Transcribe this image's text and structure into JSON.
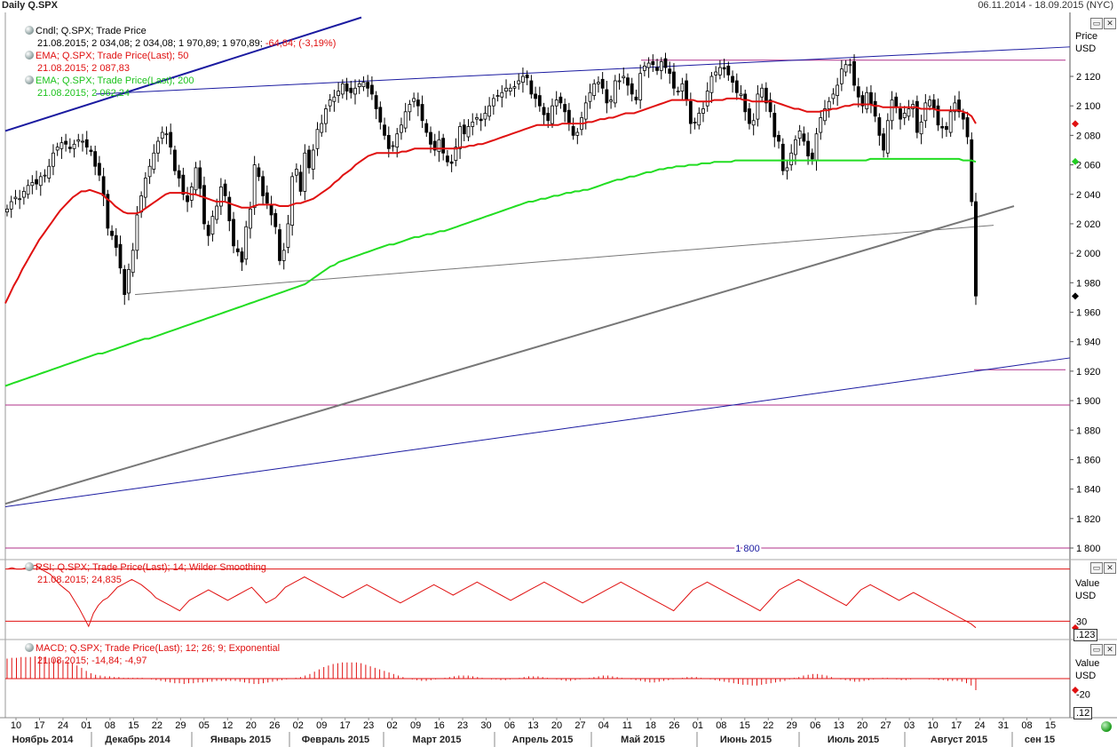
{
  "header": {
    "title": "Daily Q.SPX",
    "range": "06.11.2014 - 18.09.2015 (NYC)"
  },
  "legends": {
    "candles": {
      "line1": "Cndl; Q.SPX; Trade Price",
      "line2_main": "21.08.2015; 2 034,08; 2 034,08; 1 970,89; 1 970,89; ",
      "line2_chg": "-64,84; (-3,19%)"
    },
    "ema50": {
      "line1": "EMA; Q.SPX; Trade Price(Last);  50",
      "line2": "21.08.2015; 2 087,83"
    },
    "ema200": {
      "line1": "EMA; Q.SPX; Trade Price(Last);  200",
      "line2": "21.08.2015; 2 062,24"
    },
    "rsi": {
      "line1": "RSI; Q.SPX; Trade Price(Last);  14; Wilder Smoothing",
      "line2": "21.08.2015; 24,835"
    },
    "macd": {
      "line1": "MACD; Q.SPX; Trade Price(Last);  12; 26; 9; Exponential",
      "line2": "21.08.2015; -14,84; -4,97"
    }
  },
  "axis": {
    "price_title": "Price",
    "price_unit": "USD",
    "value_title": "Value",
    "value_unit": "USD",
    "rsi_value_box": ".123",
    "macd_value_box": ".12"
  },
  "colors": {
    "ema50": "#e01010",
    "ema200": "#22dd22",
    "trend_blue": "#1a1aa0",
    "trend_gray": "#777777",
    "level_magenta": "#b0308a",
    "candle": "#000000",
    "macd": "#e01010",
    "rsi": "#e01010"
  },
  "chart_data": [
    {
      "type": "candlestick",
      "title": "Daily Q.SPX",
      "ylabel": "Price USD",
      "ylim": [
        1790,
        2150
      ],
      "yticks": [
        1800,
        1820,
        1840,
        1860,
        1880,
        1900,
        1920,
        1940,
        1960,
        1980,
        2000,
        2020,
        2040,
        2060,
        2080,
        2100,
        2120
      ],
      "ytick_labels": [
        "1 800",
        "1 820",
        "1 840",
        "1 860",
        "1 880",
        "1 900",
        "1 920",
        "1 940",
        "1 960",
        "1 980",
        "2 000",
        "2 020",
        "2 040",
        "2 060",
        "2 080",
        "2 100",
        "2 120"
      ],
      "grid": false,
      "last_price_marker": 1970.89,
      "ema50_marker": 2087.83,
      "ema200_marker": 2062.24,
      "last_bar": {
        "date": "21.08.2015",
        "open": 2034.08,
        "high": 2034.08,
        "low": 1970.89,
        "close": 1970.89,
        "change": -64.84,
        "change_pct": -3.19
      },
      "close_series": [
        2030,
        2035,
        2038,
        2037,
        2042,
        2046,
        2048,
        2047,
        2052,
        2053,
        2059,
        2068,
        2072,
        2075,
        2074,
        2071,
        2074,
        2077,
        2076,
        2072,
        2069,
        2059,
        2053,
        2039,
        2017,
        2012,
        2004,
        1990,
        1972,
        1989,
        2002,
        2026,
        2039,
        2051,
        2059,
        2068,
        2076,
        2082,
        2081,
        2072,
        2056,
        2051,
        2040,
        2035,
        2045,
        2058,
        2044,
        2020,
        2012,
        2025,
        2032,
        2045,
        2039,
        2022,
        2005,
        2001,
        1994,
        2018,
        2030,
        2060,
        2052,
        2039,
        2034,
        2026,
        2018,
        1995,
        2002,
        2020,
        2052,
        2057,
        2042,
        2068,
        2058,
        2070,
        2084,
        2088,
        2098,
        2104,
        2106,
        2110,
        2115,
        2110,
        2109,
        2112,
        2115,
        2116,
        2112,
        2108,
        2098,
        2089,
        2080,
        2071,
        2073,
        2081,
        2087,
        2096,
        2101,
        2105,
        2100,
        2090,
        2082,
        2074,
        2070,
        2077,
        2068,
        2062,
        2061,
        2072,
        2086,
        2081,
        2086,
        2089,
        2092,
        2090,
        2095,
        2100,
        2105,
        2107,
        2109,
        2112,
        2112,
        2113,
        2117,
        2120,
        2119,
        2108,
        2105,
        2100,
        2094,
        2090,
        2100,
        2104,
        2102,
        2096,
        2088,
        2080,
        2082,
        2092,
        2102,
        2109,
        2115,
        2116,
        2112,
        2102,
        2104,
        2117,
        2117,
        2120,
        2114,
        2108,
        2104,
        2122,
        2127,
        2129,
        2128,
        2124,
        2130,
        2126,
        2122,
        2112,
        2110,
        2115,
        2104,
        2088,
        2089,
        2095,
        2098,
        2110,
        2120,
        2123,
        2126,
        2125,
        2121,
        2116,
        2109,
        2108,
        2096,
        2088,
        2090,
        2108,
        2112,
        2102,
        2096,
        2079,
        2076,
        2056,
        2058,
        2068,
        2077,
        2083,
        2076,
        2066,
        2064,
        2081,
        2092,
        2098,
        2103,
        2108,
        2114,
        2125,
        2128,
        2128,
        2114,
        2106,
        2100,
        2109,
        2101,
        2093,
        2080,
        2070,
        2090,
        2104,
        2099,
        2091,
        2095,
        2098,
        2101,
        2082,
        2089,
        2102,
        2104,
        2098,
        2087,
        2085,
        2084,
        2096,
        2102,
        2096,
        2091,
        2079,
        2035,
        1971
      ],
      "ema50_series": [
        1966,
        1972,
        1978,
        1983,
        1989,
        1994,
        1999,
        2004,
        2009,
        2013,
        2017,
        2021,
        2025,
        2029,
        2032,
        2035,
        2038,
        2040,
        2042,
        2042,
        2043,
        2042,
        2041,
        2040,
        2037,
        2035,
        2032,
        2030,
        2028,
        2027,
        2027,
        2027,
        2028,
        2030,
        2032,
        2034,
        2036,
        2038,
        2040,
        2041,
        2041,
        2041,
        2041,
        2041,
        2040,
        2040,
        2039,
        2038,
        2037,
        2036,
        2035,
        2035,
        2035,
        2034,
        2033,
        2032,
        2031,
        2031,
        2031,
        2032,
        2033,
        2033,
        2033,
        2033,
        2033,
        2032,
        2032,
        2032,
        2033,
        2034,
        2034,
        2035,
        2036,
        2037,
        2039,
        2041,
        2043,
        2045,
        2048,
        2050,
        2053,
        2055,
        2057,
        2060,
        2062,
        2064,
        2066,
        2067,
        2068,
        2068,
        2068,
        2068,
        2068,
        2068,
        2069,
        2069,
        2070,
        2071,
        2071,
        2071,
        2071,
        2071,
        2071,
        2071,
        2071,
        2071,
        2071,
        2071,
        2072,
        2072,
        2073,
        2073,
        2074,
        2074,
        2075,
        2076,
        2077,
        2078,
        2079,
        2080,
        2081,
        2082,
        2083,
        2084,
        2085,
        2086,
        2087,
        2087,
        2087,
        2087,
        2087,
        2087,
        2088,
        2088,
        2088,
        2088,
        2088,
        2088,
        2089,
        2089,
        2090,
        2091,
        2091,
        2092,
        2092,
        2093,
        2094,
        2095,
        2095,
        2095,
        2096,
        2097,
        2098,
        2099,
        2100,
        2101,
        2102,
        2103,
        2104,
        2104,
        2104,
        2104,
        2104,
        2104,
        2103,
        2103,
        2103,
        2103,
        2104,
        2104,
        2104,
        2105,
        2105,
        2105,
        2105,
        2104,
        2104,
        2103,
        2103,
        2103,
        2103,
        2103,
        2103,
        2102,
        2101,
        2100,
        2099,
        2098,
        2098,
        2097,
        2096,
        2096,
        2096,
        2096,
        2097,
        2097,
        2098,
        2098,
        2099,
        2100,
        2100,
        2101,
        2101,
        2101,
        2101,
        2101,
        2100,
        2100,
        2099,
        2099,
        2099,
        2099,
        2099,
        2099,
        2099,
        2099,
        2099,
        2098,
        2098,
        2098,
        2098,
        2097,
        2097,
        2097,
        2097,
        2097,
        2097,
        2096,
        2095,
        2093,
        2088
      ],
      "ema200_series": [
        1910,
        1911,
        1912,
        1913,
        1914,
        1915,
        1916,
        1917,
        1918,
        1919,
        1920,
        1921,
        1922,
        1923,
        1924,
        1925,
        1926,
        1927,
        1928,
        1929,
        1930,
        1931,
        1932,
        1932,
        1933,
        1934,
        1935,
        1936,
        1937,
        1938,
        1939,
        1940,
        1941,
        1942,
        1942,
        1943,
        1944,
        1945,
        1946,
        1947,
        1948,
        1949,
        1950,
        1951,
        1952,
        1953,
        1954,
        1955,
        1956,
        1957,
        1958,
        1959,
        1960,
        1961,
        1962,
        1963,
        1964,
        1965,
        1966,
        1967,
        1968,
        1969,
        1970,
        1971,
        1972,
        1973,
        1974,
        1975,
        1976,
        1977,
        1978,
        1979,
        1981,
        1983,
        1985,
        1987,
        1989,
        1991,
        1992,
        1994,
        1995,
        1996,
        1997,
        1998,
        1999,
        2000,
        2001,
        2002,
        2003,
        2004,
        2005,
        2006,
        2006,
        2007,
        2008,
        2009,
        2010,
        2011,
        2011,
        2012,
        2013,
        2013,
        2014,
        2015,
        2015,
        2016,
        2017,
        2018,
        2019,
        2020,
        2021,
        2022,
        2023,
        2024,
        2025,
        2026,
        2027,
        2028,
        2029,
        2030,
        2031,
        2032,
        2033,
        2034,
        2035,
        2035,
        2036,
        2037,
        2037,
        2038,
        2039,
        2039,
        2040,
        2041,
        2041,
        2042,
        2042,
        2043,
        2043,
        2044,
        2045,
        2046,
        2047,
        2048,
        2049,
        2050,
        2050,
        2051,
        2052,
        2052,
        2053,
        2054,
        2055,
        2055,
        2056,
        2057,
        2057,
        2058,
        2058,
        2059,
        2059,
        2059,
        2060,
        2060,
        2060,
        2061,
        2061,
        2061,
        2062,
        2062,
        2062,
        2062,
        2062,
        2063,
        2063,
        2063,
        2063,
        2063,
        2063,
        2063,
        2063,
        2063,
        2063,
        2063,
        2063,
        2063,
        2063,
        2063,
        2063,
        2063,
        2063,
        2063,
        2063,
        2063,
        2063,
        2063,
        2063,
        2063,
        2063,
        2063,
        2063,
        2063,
        2063,
        2063,
        2063,
        2064,
        2064,
        2064,
        2064,
        2064,
        2064,
        2064,
        2064,
        2064,
        2064,
        2064,
        2064,
        2064,
        2064,
        2064,
        2064,
        2064,
        2064,
        2064,
        2064,
        2064,
        2064,
        2063,
        2063,
        2063,
        2062
      ]
    },
    {
      "type": "line",
      "title": "RSI; Q.SPX; Trade Price(Last); 14; Wilder Smoothing",
      "ylim": [
        20,
        80
      ],
      "reference_lines": [
        70,
        30
      ],
      "ytick_labels": [
        "30"
      ],
      "last_value": 24.835,
      "rsi_series": [
        70,
        71,
        70,
        70,
        71,
        72,
        73,
        70,
        68,
        66,
        62,
        58,
        55,
        52,
        46,
        40,
        33,
        26,
        36,
        42,
        46,
        48,
        52,
        56,
        58,
        60,
        62,
        60,
        58,
        55,
        52,
        48,
        46,
        44,
        42,
        40,
        38,
        42,
        46,
        48,
        50,
        52,
        54,
        52,
        50,
        48,
        46,
        48,
        50,
        52,
        54,
        56,
        52,
        48,
        44,
        46,
        48,
        52,
        56,
        58,
        60,
        62,
        64,
        62,
        60,
        58,
        56,
        54,
        52,
        50,
        48,
        50,
        52,
        54,
        56,
        58,
        56,
        54,
        52,
        50,
        48,
        46,
        44,
        46,
        48,
        50,
        52,
        54,
        56,
        58,
        56,
        54,
        52,
        50,
        52,
        54,
        56,
        58,
        60,
        58,
        56,
        54,
        52,
        50,
        48,
        46,
        48,
        50,
        52,
        54,
        56,
        58,
        60,
        58,
        56,
        54,
        52,
        50,
        48,
        46,
        44,
        46,
        48,
        50,
        52,
        54,
        56,
        58,
        60,
        58,
        56,
        54,
        52,
        50,
        48,
        46,
        44,
        42,
        40,
        38,
        42,
        46,
        50,
        54,
        56,
        58,
        60,
        58,
        56,
        54,
        52,
        50,
        48,
        46,
        44,
        42,
        40,
        38,
        42,
        46,
        50,
        54,
        56,
        58,
        60,
        62,
        60,
        58,
        56,
        54,
        52,
        50,
        48,
        46,
        44,
        42,
        46,
        50,
        54,
        56,
        58,
        56,
        54,
        52,
        50,
        48,
        46,
        48,
        50,
        52,
        50,
        48,
        46,
        44,
        42,
        40,
        38,
        36,
        34,
        32,
        30,
        28,
        25
      ]
    },
    {
      "type": "bar",
      "title": "MACD; Q.SPX; Trade Price(Last); 12; 26; 9; Exponential",
      "ylim": [
        -25,
        35
      ],
      "reference_lines": [
        0
      ],
      "ytick_labels": [
        "-20"
      ],
      "last_values": {
        "macd": -14.84,
        "signal": -4.97
      },
      "macd_hist": [
        26,
        27,
        27,
        28,
        28,
        28,
        29,
        29,
        28,
        27,
        26,
        25,
        24,
        22,
        20,
        17,
        14,
        10,
        7,
        5,
        4,
        3,
        3,
        2,
        2,
        1,
        1,
        1,
        1,
        1,
        0,
        -1,
        -2,
        -3,
        -4,
        -5,
        -6,
        -6,
        -7,
        -6,
        -6,
        -5,
        -5,
        -4,
        -4,
        -3,
        -3,
        -3,
        -3,
        -3,
        -4,
        -5,
        -6,
        -7,
        -7,
        -6,
        -5,
        -4,
        -3,
        -2,
        -1,
        0,
        1,
        2,
        4,
        6,
        9,
        12,
        15,
        17,
        19,
        20,
        21,
        21,
        21,
        21,
        20,
        18,
        16,
        14,
        12,
        10,
        8,
        6,
        4,
        2,
        0,
        -1,
        -2,
        -3,
        -3,
        -2,
        -1,
        0,
        1,
        2,
        3,
        4,
        4,
        4,
        3,
        2,
        1,
        0,
        -1,
        -1,
        -2,
        -2,
        -1,
        0,
        1,
        2,
        3,
        3,
        3,
        2,
        1,
        0,
        -1,
        -2,
        -3,
        -3,
        -2,
        -1,
        0,
        1,
        2,
        3,
        4,
        4,
        3,
        2,
        1,
        0,
        -1,
        -2,
        -3,
        -4,
        -5,
        -5,
        -4,
        -3,
        -2,
        -1,
        0,
        1,
        2,
        2,
        2,
        1,
        0,
        -1,
        -2,
        -3,
        -4,
        -5,
        -6,
        -7,
        -8,
        -8,
        -9,
        -9,
        -8,
        -7,
        -6,
        -5,
        -4,
        -3,
        -1,
        1,
        2,
        4,
        5,
        6,
        6,
        5,
        4,
        2,
        0,
        -1,
        -2,
        -3,
        -4,
        -4,
        -3,
        -2,
        -1,
        0,
        1,
        1,
        0,
        -1,
        -2,
        -2,
        -1,
        0,
        0,
        0,
        -1,
        -1,
        -2,
        -2,
        -3,
        -3,
        -3,
        -4,
        -6,
        -9,
        -15
      ]
    }
  ],
  "x_axis": {
    "day_labels": [
      "10",
      "17",
      "24",
      "01",
      "08",
      "15",
      "22",
      "29",
      "05",
      "12",
      "20",
      "26",
      "02",
      "09",
      "17",
      "23",
      "02",
      "09",
      "16",
      "23",
      "30",
      "06",
      "13",
      "20",
      "27",
      "04",
      "11",
      "18",
      "26",
      "01",
      "08",
      "15",
      "22",
      "29",
      "06",
      "13",
      "20",
      "27",
      "03",
      "10",
      "17",
      "24",
      "31",
      "08",
      "15"
    ],
    "month_labels": [
      "Ноябрь 2014",
      "Декабрь 2014",
      "Январь 2015",
      "Февраль 2015",
      "Март 2015",
      "Апрель 2015",
      "Май 2015",
      "Июнь 2015",
      "Июль 2015",
      "Август 2015",
      "сен 15"
    ]
  }
}
